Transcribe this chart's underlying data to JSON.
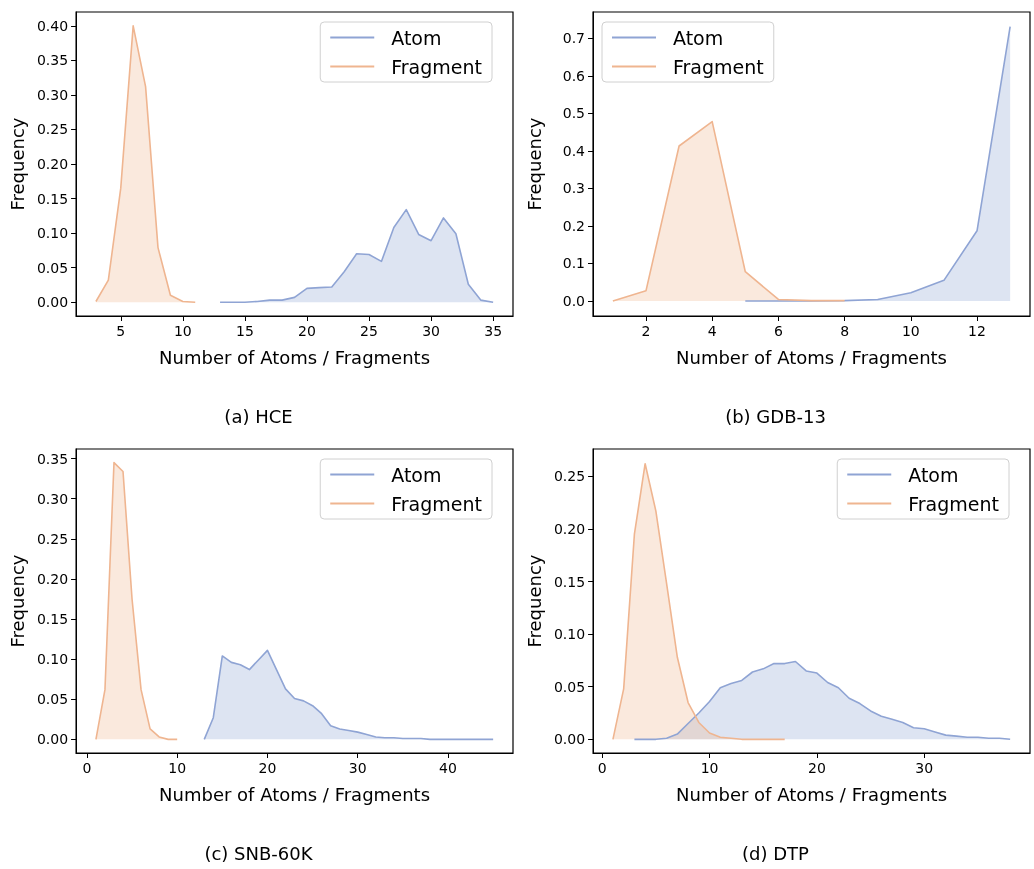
{
  "chart_data": [
    {
      "type": "area",
      "title": "(a) HCE",
      "xlabel": "Number of Atoms / Fragments",
      "ylabel": "Frequency",
      "legend": "top right",
      "grid": false,
      "marker": "none",
      "line_style": "solid",
      "xlim": [
        1.4,
        36.6
      ],
      "xticks": [
        5,
        10,
        15,
        20,
        25,
        30,
        35
      ],
      "ylim": [
        -0.02,
        0.42
      ],
      "yticks": [
        {
          "value": 0,
          "label": "0.00"
        },
        {
          "value": 0.05,
          "label": "0.05"
        },
        {
          "value": 0.1,
          "label": "0.10"
        },
        {
          "value": 0.15,
          "label": "0.15"
        },
        {
          "value": 0.2,
          "label": "0.20"
        },
        {
          "value": 0.25,
          "label": "0.25"
        },
        {
          "value": 0.3,
          "label": "0.30"
        },
        {
          "value": 0.35,
          "label": "0.35"
        },
        {
          "value": 0.4,
          "label": "0.40"
        }
      ],
      "series": [
        {
          "name": "Atom",
          "color": "#8fa4d4",
          "x": [
            13,
            14,
            15,
            16,
            17,
            18,
            19,
            20,
            21,
            22,
            23,
            24,
            25,
            26,
            27,
            28,
            29,
            30,
            31,
            32,
            33,
            34,
            35
          ],
          "values": [
            0,
            0,
            0,
            0.001,
            0.003,
            0.003,
            0.007,
            0.02,
            0.021,
            0.022,
            0.044,
            0.07,
            0.069,
            0.059,
            0.108,
            0.134,
            0.098,
            0.089,
            0.122,
            0.099,
            0.026,
            0.003,
            0
          ]
        },
        {
          "name": "Fragment",
          "color": "#efb590",
          "x": [
            3,
            4,
            5,
            6,
            7,
            8,
            9,
            10,
            11
          ],
          "values": [
            0.001,
            0.032,
            0.165,
            0.4,
            0.312,
            0.079,
            0.01,
            0.001,
            0
          ]
        }
      ]
    },
    {
      "type": "area",
      "title": "(b) GDB-13",
      "xlabel": "Number of Atoms / Fragments",
      "ylabel": "Frequency",
      "legend": "top left",
      "grid": false,
      "marker": "none",
      "line_style": "solid",
      "xlim": [
        0.4,
        13.6
      ],
      "xticks": [
        2,
        4,
        6,
        8,
        10,
        12
      ],
      "ylim": [
        -0.04,
        0.77
      ],
      "yticks": [
        {
          "value": 0,
          "label": "0.0"
        },
        {
          "value": 0.1,
          "label": "0.1"
        },
        {
          "value": 0.2,
          "label": "0.2"
        },
        {
          "value": 0.3,
          "label": "0.3"
        },
        {
          "value": 0.4,
          "label": "0.4"
        },
        {
          "value": 0.5,
          "label": "0.5"
        },
        {
          "value": 0.6,
          "label": "0.6"
        },
        {
          "value": 0.7,
          "label": "0.7"
        }
      ],
      "series": [
        {
          "name": "Atom",
          "color": "#8fa4d4",
          "x": [
            5,
            6,
            7,
            8,
            9,
            10,
            11,
            12,
            13
          ],
          "values": [
            0,
            0,
            0,
            0.001,
            0.004,
            0.022,
            0.055,
            0.187,
            0.731
          ]
        },
        {
          "name": "Fragment",
          "color": "#efb590",
          "x": [
            1,
            2,
            3,
            4,
            5,
            6,
            7,
            8
          ],
          "values": [
            0,
            0.027,
            0.413,
            0.478,
            0.078,
            0.004,
            0.001,
            0.001
          ]
        }
      ]
    },
    {
      "type": "area",
      "title": "(c) SNB-60K",
      "xlabel": "Number of Atoms / Fragments",
      "ylabel": "Frequency",
      "legend": "top right",
      "grid": false,
      "marker": "none",
      "line_style": "solid",
      "xlim": [
        -1.2,
        47.2
      ],
      "xticks": [
        0,
        10,
        20,
        30,
        40
      ],
      "ylim": [
        -0.017,
        0.362
      ],
      "yticks": [
        {
          "value": 0,
          "label": "0.00"
        },
        {
          "value": 0.05,
          "label": "0.05"
        },
        {
          "value": 0.1,
          "label": "0.10"
        },
        {
          "value": 0.15,
          "label": "0.15"
        },
        {
          "value": 0.2,
          "label": "0.20"
        },
        {
          "value": 0.25,
          "label": "0.25"
        },
        {
          "value": 0.3,
          "label": "0.30"
        },
        {
          "value": 0.35,
          "label": "0.35"
        }
      ],
      "series": [
        {
          "name": "Atom",
          "color": "#8fa4d4",
          "x": [
            13,
            14,
            15,
            16,
            17,
            18,
            19,
            20,
            21,
            22,
            23,
            24,
            25,
            26,
            27,
            28,
            29,
            30,
            31,
            32,
            33,
            34,
            35,
            36,
            37,
            38,
            39,
            40,
            41,
            42,
            43,
            44,
            45
          ],
          "values": [
            0,
            0.027,
            0.104,
            0.096,
            0.093,
            0.087,
            0.099,
            0.111,
            0.087,
            0.063,
            0.051,
            0.048,
            0.042,
            0.032,
            0.017,
            0.013,
            0.011,
            0.009,
            0.006,
            0.003,
            0.002,
            0.002,
            0.001,
            0.001,
            0.001,
            0,
            0,
            0,
            0,
            0,
            0,
            0,
            0
          ]
        },
        {
          "name": "Fragment",
          "color": "#efb590",
          "x": [
            1,
            2,
            3,
            4,
            5,
            6,
            7,
            8,
            9,
            10
          ],
          "values": [
            0,
            0.062,
            0.345,
            0.334,
            0.175,
            0.062,
            0.013,
            0.003,
            0,
            0
          ]
        }
      ]
    },
    {
      "type": "area",
      "title": "(d) DTP",
      "xlabel": "Number of Atoms / Fragments",
      "ylabel": "Frequency",
      "legend": "top right",
      "grid": false,
      "marker": "none",
      "line_style": "solid",
      "xlim": [
        -0.85,
        39.85
      ],
      "xticks": [
        0,
        10,
        20,
        30
      ],
      "ylim": [
        -0.013,
        0.276
      ],
      "yticks": [
        {
          "value": 0,
          "label": "0.00"
        },
        {
          "value": 0.05,
          "label": "0.05"
        },
        {
          "value": 0.1,
          "label": "0.10"
        },
        {
          "value": 0.15,
          "label": "0.15"
        },
        {
          "value": 0.2,
          "label": "0.20"
        },
        {
          "value": 0.25,
          "label": "0.25"
        }
      ],
      "series": [
        {
          "name": "Atom",
          "color": "#8fa4d4",
          "x": [
            3,
            4,
            5,
            6,
            7,
            8,
            9,
            10,
            11,
            12,
            13,
            14,
            15,
            16,
            17,
            18,
            19,
            20,
            21,
            22,
            23,
            24,
            25,
            26,
            27,
            28,
            29,
            30,
            31,
            32,
            33,
            34,
            35,
            36,
            37,
            38
          ],
          "values": [
            0,
            0,
            0,
            0.001,
            0.005,
            0.015,
            0.025,
            0.036,
            0.049,
            0.053,
            0.056,
            0.064,
            0.067,
            0.072,
            0.072,
            0.074,
            0.065,
            0.063,
            0.054,
            0.049,
            0.039,
            0.034,
            0.027,
            0.022,
            0.019,
            0.016,
            0.011,
            0.01,
            0.007,
            0.004,
            0.003,
            0.002,
            0.002,
            0.001,
            0.001,
            0
          ]
        },
        {
          "name": "Fragment",
          "color": "#efb590",
          "x": [
            1,
            2,
            3,
            4,
            5,
            6,
            7,
            8,
            9,
            10,
            11,
            12,
            13,
            14,
            15,
            16,
            17
          ],
          "values": [
            0,
            0.048,
            0.195,
            0.262,
            0.217,
            0.148,
            0.078,
            0.035,
            0.016,
            0.006,
            0.002,
            0.001,
            0,
            0,
            0,
            0,
            0
          ]
        }
      ]
    }
  ]
}
